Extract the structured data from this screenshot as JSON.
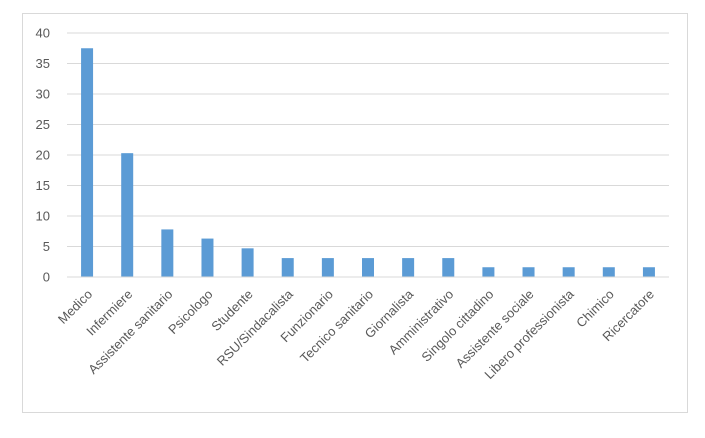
{
  "chart_data": {
    "type": "bar",
    "title": "",
    "xlabel": "",
    "ylabel": "",
    "ylim": [
      0,
      40
    ],
    "yticks": [
      0,
      5,
      10,
      15,
      20,
      25,
      30,
      35,
      40
    ],
    "grid": true,
    "legend": "none",
    "bar_color": "#5b9bd5",
    "categories": [
      "Medico",
      "Infermiere",
      "Assistente sanitario",
      "Psicologo",
      "Studente",
      "RSU/Sindacalista",
      "Funzionario",
      "Tecnico sanitario",
      "Giornalista",
      "Amministrativo",
      "Singolo cittadino",
      "Assistente sociale",
      "Libero professionista",
      "Chimico",
      "Ricercatore"
    ],
    "values": [
      37.5,
      20.3,
      7.8,
      6.3,
      4.7,
      3.1,
      3.1,
      3.1,
      3.1,
      3.1,
      1.6,
      1.6,
      1.6,
      1.6,
      1.6
    ]
  }
}
